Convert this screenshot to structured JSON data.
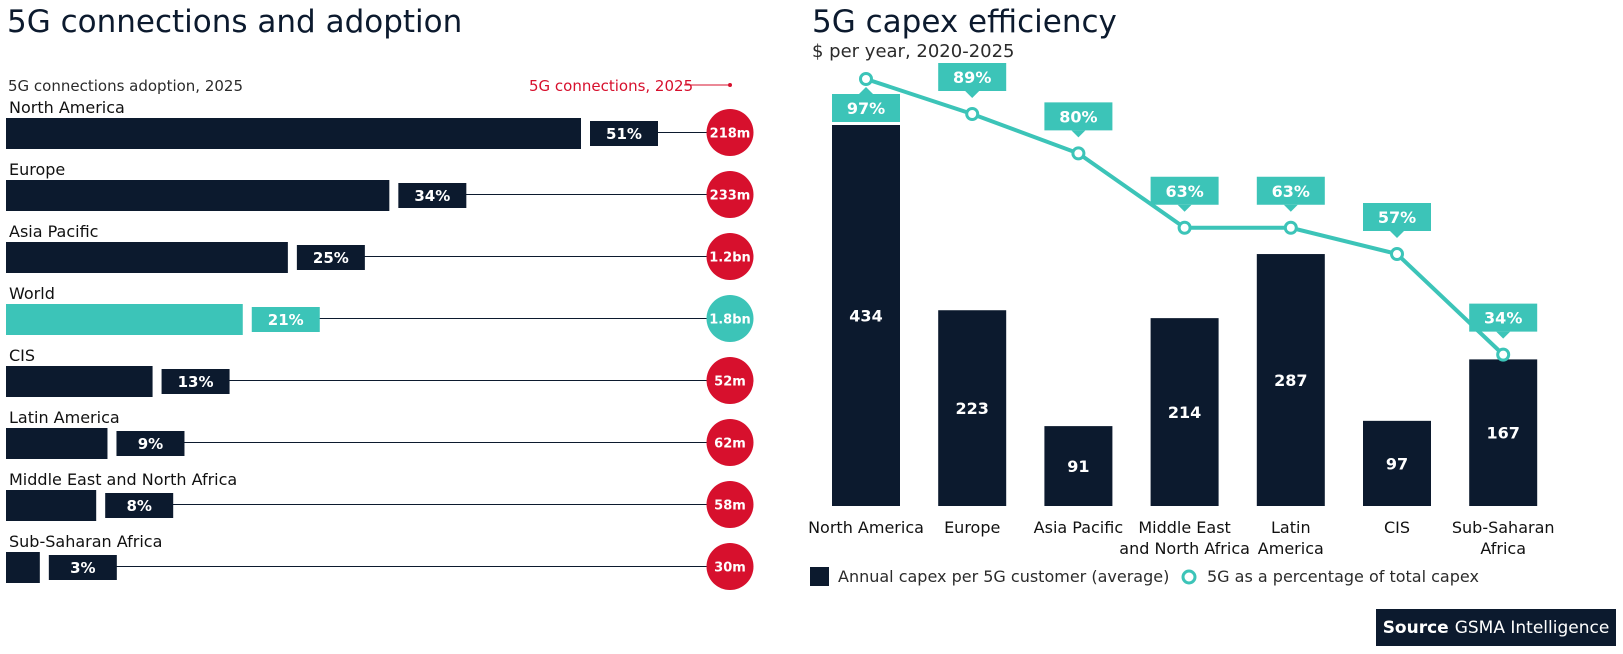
{
  "left": {
    "title": "5G connections and adoption",
    "adoption_label": "5G connections adoption, 2025",
    "connections_label": "5G connections, 2025"
  },
  "right": {
    "title": "5G capex efficiency",
    "subtitle": "$ per year, 2020-2025"
  },
  "source": {
    "prefix": "Source",
    "name": "GSMA Intelligence"
  },
  "colors": {
    "navy": "#0c1a2e",
    "teal": "#3cc4b8",
    "red": "#d7102d"
  },
  "chart_data": [
    {
      "type": "bar",
      "orientation": "horizontal",
      "title": "5G connections and adoption",
      "series_label": "5G connections adoption, 2025",
      "secondary_label": "5G connections, 2025",
      "categories": [
        "North America",
        "Europe",
        "Asia Pacific",
        "World",
        "CIS",
        "Latin America",
        "Middle East and North Africa",
        "Sub-Saharan Africa"
      ],
      "values": [
        51,
        34,
        25,
        21,
        13,
        9,
        8,
        3
      ],
      "value_labels": [
        "51%",
        "34%",
        "25%",
        "21%",
        "13%",
        "9%",
        "8%",
        "3%"
      ],
      "connections": [
        "218m",
        "233m",
        "1.2bn",
        "1.8bn",
        "52m",
        "62m",
        "58m",
        "30m"
      ],
      "highlight": "World",
      "unit": "%"
    },
    {
      "type": "bar",
      "title": "5G capex efficiency",
      "subtitle": "$ per year, 2020-2025",
      "categories": [
        "North America",
        "Europe",
        "Asia Pacific",
        "Middle East and North Africa",
        "Latin America",
        "CIS",
        "Sub-Saharan Africa"
      ],
      "category_lines": [
        [
          "North America"
        ],
        [
          "Europe"
        ],
        [
          "Asia Pacific"
        ],
        [
          "Middle East",
          "and North Africa"
        ],
        [
          "Latin",
          "America"
        ],
        [
          "CIS"
        ],
        [
          "Sub-Saharan",
          "Africa"
        ]
      ],
      "series": [
        {
          "name": "Annual capex per 5G customer (average)",
          "type": "bar",
          "values": [
            434,
            223,
            91,
            214,
            287,
            97,
            167
          ]
        },
        {
          "name": "5G as a percentage of total capex",
          "type": "line",
          "values": [
            97,
            89,
            80,
            63,
            63,
            57,
            34
          ],
          "labels": [
            "97%",
            "89%",
            "80%",
            "63%",
            "63%",
            "57%",
            "34%"
          ]
        }
      ],
      "legend_position": "bottom"
    }
  ]
}
